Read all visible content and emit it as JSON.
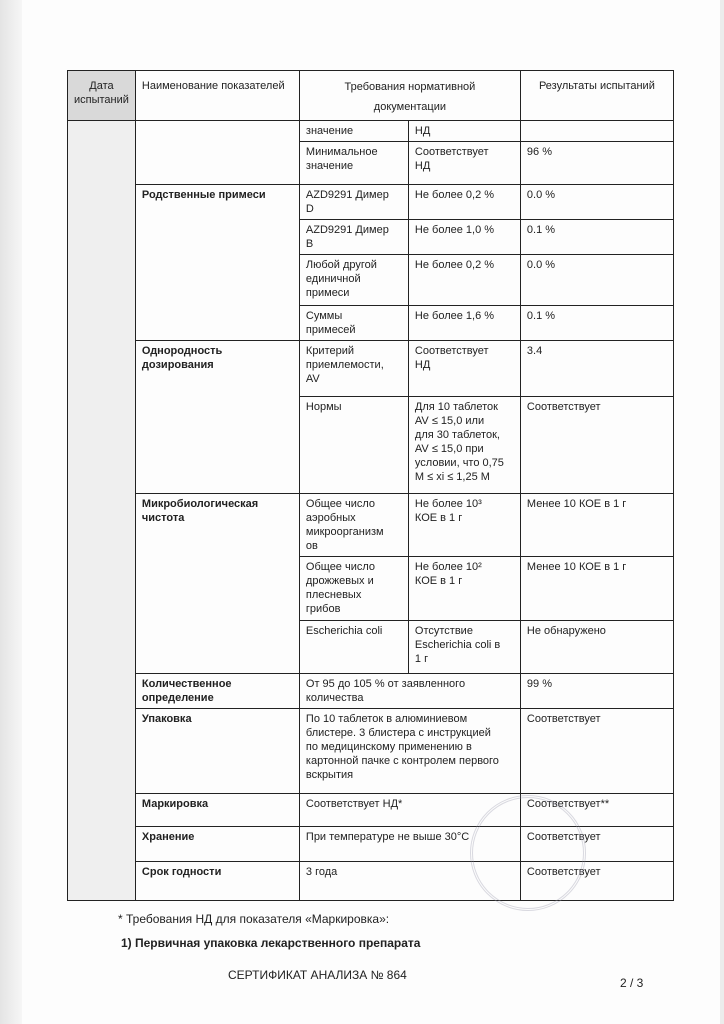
{
  "header": {
    "date": "Дата\nиспытаний",
    "name": "Наименование показателей",
    "requirements": "Требования нормативной\nдокументации",
    "results": "Результаты испытаний"
  },
  "groups": [
    {
      "name": "",
      "rows": [
        {
          "sub": "значение",
          "req": "НД",
          "result": ""
        },
        {
          "sub": "Минимальное\nзначение",
          "req": "Соответствует\nНД",
          "result": "96 %"
        }
      ]
    },
    {
      "name": "Родственные примеси",
      "rows": [
        {
          "sub": "AZD9291 Димер\nD",
          "req": "Не более 0,2 %",
          "result": "0.0 %"
        },
        {
          "sub": "AZD9291 Димер\nB",
          "req": "Не более 1,0 %",
          "result": "0.1 %"
        },
        {
          "sub": "Любой другой\nединичной\nпримеси",
          "req": "Не более 0,2 %",
          "result": "0.0 %"
        },
        {
          "sub": "Суммы\nпримесей",
          "req": "Не более 1,6 %",
          "result": "0.1 %"
        }
      ]
    },
    {
      "name": "Однородность дозирования",
      "rows": [
        {
          "sub": "Критерий\nприемлемости,\nAV",
          "req": "Соответствует\nНД",
          "result": "3.4"
        },
        {
          "sub": "Нормы",
          "req": "Для 10 таблеток\nAV ≤ 15,0 или\nдля 30 таблеток,\nAV ≤ 15,0 при\nусловии, что 0,75\nM ≤ xi ≤ 1,25 M",
          "result": "Соответствует"
        }
      ]
    },
    {
      "name": "Микробиологическая чистота",
      "rows": [
        {
          "sub": "Общее число\nаэробных\nмикроорганизм\nов",
          "req": "Не более 10³\nКОЕ в 1 г",
          "result": "Менее 10 КОЕ в 1 г"
        },
        {
          "sub": "Общее число\nдрожжевых и\nплесневых\nгрибов",
          "req": "Не более 10²\nКОЕ в 1 г",
          "result": "Менее 10 КОЕ в 1 г"
        },
        {
          "sub": "Escherichia coli",
          "req": "Отсутствие\nEscherichia coli в\n1 г",
          "result": "Не обнаружено"
        }
      ]
    }
  ],
  "single_rows": [
    {
      "name": "Количественное определение",
      "req": "От 95 до 105 % от заявленного\nколичества",
      "result": "99 %"
    },
    {
      "name": "Упаковка",
      "req": "По 10 таблеток в алюминиевом\nблистере. 3 блистера с инструкцией\nпо медицинскому применению в\nкартонной пачке с контролем первого\nвскрытия",
      "result": "Соответствует"
    },
    {
      "name": "Маркировка",
      "req": "Соответствует НД*",
      "result": "Соответствует**"
    },
    {
      "name": "Хранение",
      "req": "При температуре не выше 30°С",
      "result": "Соответствует"
    },
    {
      "name": "Срок годности",
      "req": "3 года",
      "result": "Соответствует"
    }
  ],
  "footnote": "* Требования НД для показателя «Маркировка»:",
  "footnote_item": "1) Первичная упаковка лекарственного препарата",
  "footer_title": "СЕРТИФИКАТ АНАЛИЗА № 864",
  "page_number": "2 / 3"
}
